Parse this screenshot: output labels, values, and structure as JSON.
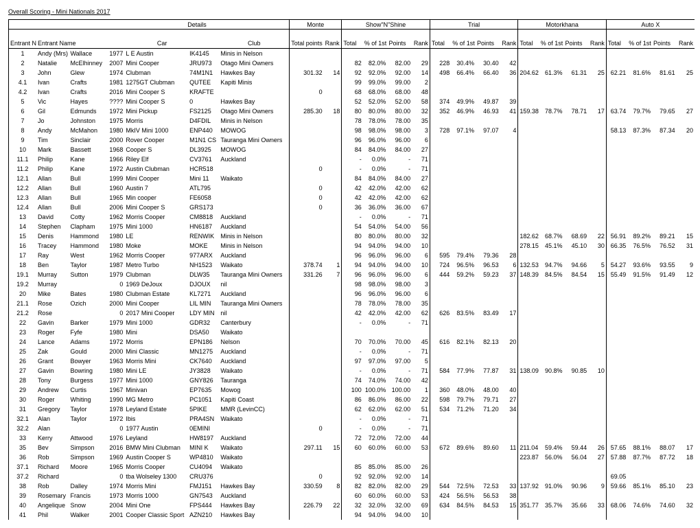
{
  "title": "Overall Scoring - Mini Nationals 2017",
  "sections": [
    "Details",
    "Monte",
    "Show\"N\"Shine",
    "Trial",
    "Motorkhana",
    "Auto X"
  ],
  "headers": {
    "entrant_no": "Entrant No",
    "entrant_name": "Entrant Name",
    "car": "Car",
    "club": "Club",
    "total_points": "Total points",
    "rank": "Rank",
    "total": "Total",
    "pct": "% of 1st",
    "points": "Points"
  },
  "rows": [
    {
      "no": "1",
      "fn": "Andy (Mrs)",
      "ln": "Wallace",
      "yr": "1977",
      "car": "L E Austin",
      "reg": "IK4145",
      "club": "Minis in Nelson"
    },
    {
      "no": "2",
      "fn": "Natalie",
      "ln": "McElhinney",
      "yr": "2007",
      "car": "Mini Cooper",
      "reg": "JRU973",
      "club": "Otago Mini Owners",
      "sns": {
        "t": "82",
        "p": "82.0%",
        "pts": "82.00",
        "r": "29"
      },
      "tr": {
        "t": "228",
        "p": "30.4%",
        "pts": "30.40",
        "r": "42"
      }
    },
    {
      "no": "3",
      "fn": "John",
      "ln": "Glew",
      "yr": "1974",
      "car": "Clubman",
      "reg": "74M1N1",
      "club": "Hawkes Bay",
      "mo": {
        "tp": "301.32",
        "r": "14"
      },
      "sns": {
        "t": "92",
        "p": "92.0%",
        "pts": "92.00",
        "r": "14"
      },
      "tr": {
        "t": "498",
        "p": "66.4%",
        "pts": "66.40",
        "r": "36"
      },
      "mk": {
        "t": "204.62",
        "p": "61.3%",
        "pts": "61.31",
        "r": "25"
      },
      "ax": {
        "t": "62.21",
        "p": "81.6%",
        "pts": "81.61",
        "r": "25"
      }
    },
    {
      "no": "4.1",
      "fn": "Ivan",
      "ln": "Crafts",
      "yr": "1981",
      "car": "1275GT Clubman",
      "reg": "QUTEE",
      "club": "Kapiti Minis",
      "sns": {
        "t": "99",
        "p": "99.0%",
        "pts": "99.00",
        "r": "2"
      }
    },
    {
      "no": "4.2",
      "fn": "Ivan",
      "ln": "Crafts",
      "yr": "2016",
      "car": "Mini Cooper S",
      "reg": "KRAFTE",
      "club": "",
      "mo": {
        "tp": "0"
      },
      "sns": {
        "t": "68",
        "p": "68.0%",
        "pts": "68.00",
        "r": "48"
      }
    },
    {
      "no": "5",
      "fn": "Vic",
      "ln": "Hayes",
      "yr": "????",
      "car": "Mini Cooper S",
      "reg": "0",
      "club": "Hawkes Bay",
      "sns": {
        "t": "52",
        "p": "52.0%",
        "pts": "52.00",
        "r": "58"
      },
      "tr": {
        "t": "374",
        "p": "49.9%",
        "pts": "49.87",
        "r": "39"
      }
    },
    {
      "no": "6",
      "fn": "Gil",
      "ln": "Edmunds",
      "yr": "1972",
      "car": "Mini Pickup",
      "reg": "FS2125",
      "club": "Otago Mini Owners",
      "mo": {
        "tp": "285.30",
        "r": "18"
      },
      "sns": {
        "t": "80",
        "p": "80.0%",
        "pts": "80.00",
        "r": "32"
      },
      "tr": {
        "t": "352",
        "p": "46.9%",
        "pts": "46.93",
        "r": "41"
      },
      "mk": {
        "t": "159.38",
        "p": "78.7%",
        "pts": "78.71",
        "r": "17"
      },
      "ax": {
        "t": "63.74",
        "p": "79.7%",
        "pts": "79.65",
        "r": "27"
      }
    },
    {
      "no": "7",
      "fn": "Jo",
      "ln": "Johnston",
      "yr": "1975",
      "car": "Morris",
      "reg": "D4FDIL",
      "club": "Minis in Nelson",
      "sns": {
        "t": "78",
        "p": "78.0%",
        "pts": "78.00",
        "r": "35"
      }
    },
    {
      "no": "8",
      "fn": "Andy",
      "ln": "McMahon",
      "yr": "1980",
      "car": "MkIV Mini 1000",
      "reg": "ENP440",
      "club": "MOWOG",
      "sns": {
        "t": "98",
        "p": "98.0%",
        "pts": "98.00",
        "r": "3"
      },
      "tr": {
        "t": "728",
        "p": "97.1%",
        "pts": "97.07",
        "r": "4"
      },
      "ax": {
        "t": "58.13",
        "p": "87.3%",
        "pts": "87.34",
        "r": "20"
      }
    },
    {
      "no": "9",
      "fn": "Tim",
      "ln": "Sinclair",
      "yr": "2000",
      "car": "Rover Cooper",
      "reg": "M1N1 CS",
      "club": "Tauranga Mini Owners",
      "sns": {
        "t": "96",
        "p": "96.0%",
        "pts": "96.00",
        "r": "6"
      }
    },
    {
      "no": "10",
      "fn": "Mark",
      "ln": "Bassett",
      "yr": "1968",
      "car": "Cooper S",
      "reg": "DL3925",
      "club": "MOWOG",
      "sns": {
        "t": "84",
        "p": "84.0%",
        "pts": "84.00",
        "r": "27"
      }
    },
    {
      "no": "11.1",
      "fn": "Philip",
      "ln": "Kane",
      "yr": "1966",
      "car": "Riley Elf",
      "reg": "CV3761",
      "club": "Auckland",
      "sns": {
        "t": "-",
        "p": "0.0%",
        "pts": "-",
        "r": "71"
      }
    },
    {
      "no": "11.2",
      "fn": "Philip",
      "ln": "Kane",
      "yr": "1972",
      "car": "Austin Clubman",
      "reg": "HCR518",
      "club": "",
      "mo": {
        "tp": "0"
      },
      "sns": {
        "t": "-",
        "p": "0.0%",
        "pts": "-",
        "r": "71"
      }
    },
    {
      "no": "12.1",
      "fn": "Allan",
      "ln": "Bull",
      "yr": "1999",
      "car": "Mini Cooper",
      "reg": "Mini 11",
      "club": "Waikato",
      "sns": {
        "t": "84",
        "p": "84.0%",
        "pts": "84.00",
        "r": "27"
      }
    },
    {
      "no": "12.2",
      "fn": "Allan",
      "ln": "Bull",
      "yr": "1960",
      "car": "Austin 7",
      "reg": "ATL795",
      "club": "",
      "mo": {
        "tp": "0"
      },
      "sns": {
        "t": "42",
        "p": "42.0%",
        "pts": "42.00",
        "r": "62"
      }
    },
    {
      "no": "12.3",
      "fn": "Allan",
      "ln": "Bull",
      "yr": "1965",
      "car": "Min cooper",
      "reg": "FE6058",
      "club": "",
      "mo": {
        "tp": "0"
      },
      "sns": {
        "t": "42",
        "p": "42.0%",
        "pts": "42.00",
        "r": "62"
      }
    },
    {
      "no": "12.4",
      "fn": "Allan",
      "ln": "Bull",
      "yr": "2006",
      "car": "Mini Cooper S",
      "reg": "GRS173",
      "club": "",
      "mo": {
        "tp": "0"
      },
      "sns": {
        "t": "36",
        "p": "36.0%",
        "pts": "36.00",
        "r": "67"
      }
    },
    {
      "no": "13",
      "fn": "David",
      "ln": "Cotty",
      "yr": "1962",
      "car": "Morris Cooper",
      "reg": "CM8818",
      "club": "Auckland",
      "sns": {
        "t": "-",
        "p": "0.0%",
        "pts": "-",
        "r": "71"
      }
    },
    {
      "no": "14",
      "fn": "Stephen",
      "ln": "Clapham",
      "yr": "1975",
      "car": "Mini 1000",
      "reg": "HN6187",
      "club": "Auckland",
      "sns": {
        "t": "54",
        "p": "54.0%",
        "pts": "54.00",
        "r": "56"
      }
    },
    {
      "no": "15",
      "fn": "Denis",
      "ln": "Hammond",
      "yr": "1980",
      "car": "LE",
      "reg": "RENWIK",
      "club": "Minis in Nelson",
      "sns": {
        "t": "80",
        "p": "80.0%",
        "pts": "80.00",
        "r": "32"
      },
      "mk": {
        "t": "182.62",
        "p": "68.7%",
        "pts": "68.69",
        "r": "22"
      },
      "ax": {
        "t": "56.91",
        "p": "89.2%",
        "pts": "89.21",
        "r": "15"
      }
    },
    {
      "no": "16",
      "fn": "Tracey",
      "ln": "Hammond",
      "yr": "1980",
      "car": "Moke",
      "reg": "MOKE",
      "club": "Minis in Nelson",
      "sns": {
        "t": "94",
        "p": "94.0%",
        "pts": "94.00",
        "r": "10"
      },
      "mk": {
        "t": "278.15",
        "p": "45.1%",
        "pts": "45.10",
        "r": "30"
      },
      "ax": {
        "t": "66.35",
        "p": "76.5%",
        "pts": "76.52",
        "r": "31"
      }
    },
    {
      "no": "17",
      "fn": "Ray",
      "ln": "West",
      "yr": "1962",
      "car": "Morris Cooper",
      "reg": "977ARX",
      "club": "Auckland",
      "sns": {
        "t": "96",
        "p": "96.0%",
        "pts": "96.00",
        "r": "6"
      },
      "tr": {
        "t": "595",
        "p": "79.4%",
        "pts": "79.36",
        "r": "28"
      }
    },
    {
      "no": "18",
      "fn": "Ben",
      "ln": "Taylor",
      "yr": "1987",
      "car": "Metro Turbo",
      "reg": "NH1523",
      "club": "Waikato",
      "mo": {
        "tp": "378.74",
        "r": "1"
      },
      "sns": {
        "t": "94",
        "p": "94.0%",
        "pts": "94.00",
        "r": "10"
      },
      "tr": {
        "t": "724",
        "p": "96.5%",
        "pts": "96.53",
        "r": "6"
      },
      "mk": {
        "t": "132.53",
        "p": "94.7%",
        "pts": "94.66",
        "r": "5"
      },
      "ax": {
        "t": "54.27",
        "p": "93.6%",
        "pts": "93.55",
        "r": "9"
      }
    },
    {
      "no": "19.1",
      "fn": "Murray",
      "ln": "Sutton",
      "yr": "1979",
      "car": "Clubman",
      "reg": "DLW35",
      "club": "Tauranga Mini Owners",
      "mo": {
        "tp": "331.26",
        "r": "7"
      },
      "sns": {
        "t": "96",
        "p": "96.0%",
        "pts": "96.00",
        "r": "6"
      },
      "tr": {
        "t": "444",
        "p": "59.2%",
        "pts": "59.23",
        "r": "37"
      },
      "mk": {
        "t": "148.39",
        "p": "84.5%",
        "pts": "84.54",
        "r": "15"
      },
      "ax": {
        "t": "55.49",
        "p": "91.5%",
        "pts": "91.49",
        "r": "12"
      }
    },
    {
      "no": "19.2",
      "fn": "Murray",
      "ln": "",
      "yr": "0",
      "car": "1969 DeJoux",
      "reg": "DJOUX",
      "club": "nil",
      "sns": {
        "t": "98",
        "p": "98.0%",
        "pts": "98.00",
        "r": "3"
      }
    },
    {
      "no": "20",
      "fn": "Mike",
      "ln": "Bates",
      "yr": "1980",
      "car": "Clubman Estate",
      "reg": "KL7271",
      "club": "Auckland",
      "sns": {
        "t": "96",
        "p": "96.0%",
        "pts": "96.00",
        "r": "6"
      }
    },
    {
      "no": "21.1",
      "fn": "Rose",
      "ln": "Ozich",
      "yr": "2000",
      "car": "Mini Cooper",
      "reg": "LIL MIN",
      "club": "Tauranga Mini Owners",
      "sns": {
        "t": "78",
        "p": "78.0%",
        "pts": "78.00",
        "r": "35"
      }
    },
    {
      "no": "21.2",
      "fn": "Rose",
      "ln": "",
      "yr": "0",
      "car": "2017 Mini Cooper",
      "reg": "LDY MIN",
      "club": "nil",
      "sns": {
        "t": "42",
        "p": "42.0%",
        "pts": "42.00",
        "r": "62"
      },
      "tr": {
        "t": "626",
        "p": "83.5%",
        "pts": "83.49",
        "r": "17"
      }
    },
    {
      "no": "22",
      "fn": "Gavin",
      "ln": "Barker",
      "yr": "1979",
      "car": "Mini 1000",
      "reg": "GDR32",
      "club": "Canterbury",
      "sns": {
        "t": "-",
        "p": "0.0%",
        "pts": "-",
        "r": "71"
      }
    },
    {
      "no": "23",
      "fn": "Roger",
      "ln": "Fyfe",
      "yr": "1980",
      "car": "Mini",
      "reg": "DSA50",
      "club": "Waikato"
    },
    {
      "no": "24",
      "fn": "Lance",
      "ln": "Adams",
      "yr": "1972",
      "car": "Morris",
      "reg": "EPN186",
      "club": "Nelson",
      "sns": {
        "t": "70",
        "p": "70.0%",
        "pts": "70.00",
        "r": "45"
      },
      "tr": {
        "t": "616",
        "p": "82.1%",
        "pts": "82.13",
        "r": "20"
      }
    },
    {
      "no": "25",
      "fn": "Zak",
      "ln": "Gould",
      "yr": "2000",
      "car": "Mini Classic",
      "reg": "MN1275",
      "club": "Auckland",
      "sns": {
        "t": "-",
        "p": "0.0%",
        "pts": "-",
        "r": "71"
      }
    },
    {
      "no": "26",
      "fn": "Grant",
      "ln": "Bowyer",
      "yr": "1963",
      "car": "Morris Mini",
      "reg": "CK7640",
      "club": "Auckland",
      "sns": {
        "t": "97",
        "p": "97.0%",
        "pts": "97.00",
        "r": "5"
      }
    },
    {
      "no": "27",
      "fn": "Gavin",
      "ln": "Bowring",
      "yr": "1980",
      "car": "Mini LE",
      "reg": "JY3828",
      "club": "Waikato",
      "sns": {
        "t": "-",
        "p": "0.0%",
        "pts": "-",
        "r": "71"
      },
      "tr": {
        "t": "584",
        "p": "77.9%",
        "pts": "77.87",
        "r": "31"
      },
      "mk": {
        "t": "138.09",
        "p": "90.8%",
        "pts": "90.85",
        "r": "10"
      }
    },
    {
      "no": "28",
      "fn": "Tony",
      "ln": "Burgess",
      "yr": "1977",
      "car": "Mini 1000",
      "reg": "GNY826",
      "club": "Tauranga",
      "sns": {
        "t": "74",
        "p": "74.0%",
        "pts": "74.00",
        "r": "42"
      }
    },
    {
      "no": "29",
      "fn": "Andrew",
      "ln": "Curtis",
      "yr": "1967",
      "car": "Minivan",
      "reg": "EP7635",
      "club": "Mowog",
      "sns": {
        "t": "100",
        "p": "100.0%",
        "pts": "100.00",
        "r": "1"
      },
      "tr": {
        "t": "360",
        "p": "48.0%",
        "pts": "48.00",
        "r": "40"
      }
    },
    {
      "no": "30",
      "fn": "Roger",
      "ln": "Whiting",
      "yr": "1990",
      "car": "MG Metro",
      "reg": "PC1051",
      "club": "Kapiti Coast",
      "sns": {
        "t": "86",
        "p": "86.0%",
        "pts": "86.00",
        "r": "22"
      },
      "tr": {
        "t": "598",
        "p": "79.7%",
        "pts": "79.71",
        "r": "27"
      }
    },
    {
      "no": "31",
      "fn": "Gregory",
      "ln": "Taylor",
      "yr": "1978",
      "car": "Leyland Estate",
      "reg": "5PIKE",
      "club": "MMR (LevinCC)",
      "sns": {
        "t": "62",
        "p": "62.0%",
        "pts": "62.00",
        "r": "51"
      },
      "tr": {
        "t": "534",
        "p": "71.2%",
        "pts": "71.20",
        "r": "34"
      }
    },
    {
      "no": "32.1",
      "fn": "Alan",
      "ln": "Taylor",
      "yr": "1972",
      "car": "Ibis",
      "reg": "PRA4SN",
      "club": "Waikato",
      "sns": {
        "t": "-",
        "p": "0.0%",
        "pts": "-",
        "r": "71"
      }
    },
    {
      "no": "32.2",
      "fn": "Alan",
      "ln": "",
      "yr": "0",
      "car": "1977 Austin",
      "reg": "0EMINI",
      "club": "",
      "mo": {
        "tp": "0"
      },
      "sns": {
        "t": "-",
        "p": "0.0%",
        "pts": "-",
        "r": "71"
      }
    },
    {
      "no": "33",
      "fn": "Kerry",
      "ln": "Attwood",
      "yr": "1976",
      "car": "Leyland",
      "reg": "HW8197",
      "club": "Auckland",
      "sns": {
        "t": "72",
        "p": "72.0%",
        "pts": "72.00",
        "r": "44"
      }
    },
    {
      "no": "35",
      "fn": "Bev",
      "ln": "Simpson",
      "yr": "2016",
      "car": "BMW Mini Clubman",
      "reg": "MINI K",
      "club": "Waikato",
      "mo": {
        "tp": "297.11",
        "r": "15"
      },
      "sns": {
        "t": "60",
        "p": "60.0%",
        "pts": "60.00",
        "r": "53"
      },
      "tr": {
        "t": "672",
        "p": "89.6%",
        "pts": "89.60",
        "r": "11"
      },
      "mk": {
        "t": "211.04",
        "p": "59.4%",
        "pts": "59.44",
        "r": "26"
      },
      "ax": {
        "t": "57.65",
        "p": "88.1%",
        "pts": "88.07",
        "r": "17"
      }
    },
    {
      "no": "36",
      "fn": "Rob",
      "ln": "Simpson",
      "yr": "1969",
      "car": "Austin Cooper S",
      "reg": "WP4810",
      "club": "Waikato",
      "mk": {
        "t": "223.87",
        "p": "56.0%",
        "pts": "56.04",
        "r": "27"
      },
      "ax": {
        "t": "57.88",
        "p": "87.7%",
        "pts": "87.72",
        "r": "18"
      }
    },
    {
      "no": "37.1",
      "fn": "Richard",
      "ln": "Moore",
      "yr": "1965",
      "car": "Morris Cooper",
      "reg": "CU4094",
      "club": "Waikato",
      "sns": {
        "t": "85",
        "p": "85.0%",
        "pts": "85.00",
        "r": "26"
      }
    },
    {
      "no": "37.2",
      "fn": "Richard",
      "ln": "",
      "yr": "0",
      "car": "tba   Wolseley 1300",
      "reg": "CRU376",
      "club": "",
      "mo": {
        "tp": "0"
      },
      "sns": {
        "t": "92",
        "p": "92.0%",
        "pts": "92.00",
        "r": "14"
      },
      "ax": {
        "t": "69.05"
      }
    },
    {
      "no": "38",
      "fn": "Rob",
      "ln": "Dalley",
      "yr": "1974",
      "car": "Morris Mini",
      "reg": "FMJ151",
      "club": "Hawkes Bay",
      "mo": {
        "tp": "330.59",
        "r": "8"
      },
      "sns": {
        "t": "82",
        "p": "82.0%",
        "pts": "82.00",
        "r": "29"
      },
      "tr": {
        "t": "544",
        "p": "72.5%",
        "pts": "72.53",
        "r": "33"
      },
      "mk": {
        "t": "137.92",
        "p": "91.0%",
        "pts": "90.96",
        "r": "9"
      },
      "ax": {
        "t": "59.66",
        "p": "85.1%",
        "pts": "85.10",
        "r": "23"
      }
    },
    {
      "no": "39",
      "fn": "Rosemary",
      "ln": "Francis",
      "yr": "1973",
      "car": "Morris 1000",
      "reg": "GN7543",
      "club": "Auckland",
      "sns": {
        "t": "60",
        "p": "60.0%",
        "pts": "60.00",
        "r": "53"
      },
      "tr": {
        "t": "424",
        "p": "56.5%",
        "pts": "56.53",
        "r": "38"
      }
    },
    {
      "no": "40",
      "fn": "Angelique",
      "ln": "Snow",
      "yr": "2004",
      "car": "Mini One",
      "reg": "FPS444",
      "club": "Hawkes Bay",
      "mo": {
        "tp": "226.79",
        "r": "22"
      },
      "sns": {
        "t": "32",
        "p": "32.0%",
        "pts": "32.00",
        "r": "69"
      },
      "tr": {
        "t": "634",
        "p": "84.5%",
        "pts": "84.53",
        "r": "15"
      },
      "mk": {
        "t": "351.77",
        "p": "35.7%",
        "pts": "35.66",
        "r": "33"
      },
      "ax": {
        "t": "68.06",
        "p": "74.6%",
        "pts": "74.60",
        "r": "32"
      }
    },
    {
      "no": "41",
      "fn": "Phil",
      "ln": "Walker",
      "yr": "2001",
      "car": "Cooper Classic Sport",
      "reg": "AZN210",
      "club": "Hawkes Bay",
      "sns": {
        "t": "94",
        "p": "94.0%",
        "pts": "94.00",
        "r": "10"
      }
    }
  ]
}
